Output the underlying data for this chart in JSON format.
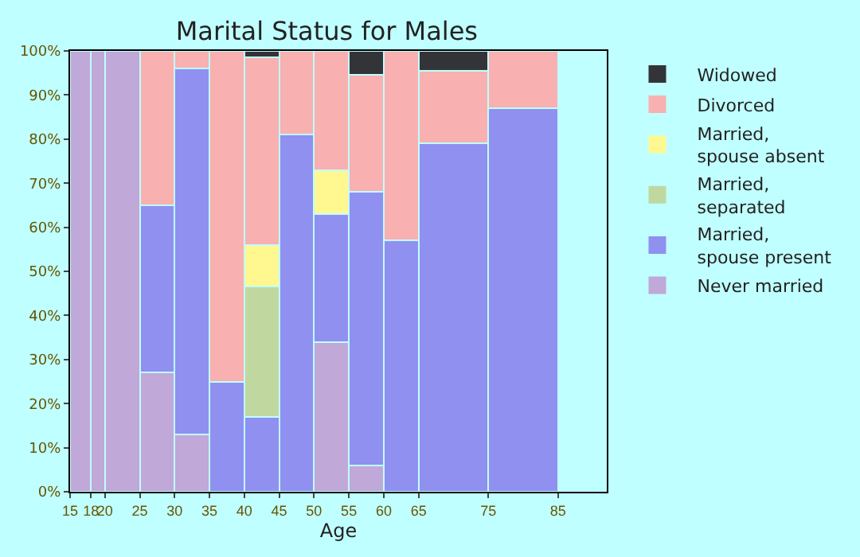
{
  "chart_data": {
    "type": "bar",
    "title": "Marital Status for Males",
    "xlabel": "Age",
    "stacked": true,
    "x": [
      16.5,
      19,
      22.5,
      27.5,
      32.5,
      37.5,
      42.5,
      47.5,
      52.5,
      57.5,
      62.5,
      70,
      80
    ],
    "series": [
      {
        "name": "Never married",
        "color": "#c0a8d8",
        "values": [
          100,
          100,
          100,
          27,
          13,
          0,
          0,
          0,
          34,
          6,
          0,
          0,
          0
        ]
      },
      {
        "name": "Married, spouse present",
        "color": "#9090f0",
        "values": [
          0,
          0,
          0,
          38,
          83,
          25,
          17,
          81,
          29,
          62,
          57,
          79,
          87
        ]
      },
      {
        "name": "Married, separated",
        "color": "#c0d8a0",
        "values": [
          0,
          0,
          0,
          0,
          0,
          0,
          29.5,
          0,
          0,
          0,
          0,
          0,
          0
        ]
      },
      {
        "name": "Married, spouse absent",
        "color": "#fff890",
        "values": [
          0,
          0,
          0,
          0,
          0,
          0,
          9.5,
          0,
          10,
          0,
          0,
          0,
          0
        ]
      },
      {
        "name": "Divorced",
        "color": "#f8b0b0",
        "values": [
          0,
          0,
          0,
          35,
          4,
          75,
          42.5,
          19,
          27,
          26.5,
          43,
          16.5,
          13
        ]
      },
      {
        "name": "Widowed",
        "color": "#333438",
        "values": [
          0,
          0,
          0,
          0,
          0,
          0,
          1.5,
          0,
          0,
          5.5,
          0,
          4.5,
          0
        ]
      }
    ],
    "xlim": [
      15,
      92
    ],
    "xticks": [
      15,
      18,
      20,
      25,
      30,
      35,
      40,
      45,
      50,
      55,
      60,
      65,
      75,
      85
    ],
    "ylim": [
      0,
      100
    ],
    "yticks": [
      {
        "value": 0,
        "label": "0%"
      },
      {
        "value": 10,
        "label": "10%"
      },
      {
        "value": 20,
        "label": "20%"
      },
      {
        "value": 30,
        "label": "30%"
      },
      {
        "value": 40,
        "label": "40%"
      },
      {
        "value": 50,
        "label": "50%"
      },
      {
        "value": 60,
        "label": "60%"
      },
      {
        "value": 70,
        "label": "70%"
      },
      {
        "value": 80,
        "label": "80%"
      },
      {
        "value": 90,
        "label": "90%"
      },
      {
        "value": 100,
        "label": "100%"
      }
    ],
    "grid": false,
    "legend": "right"
  }
}
